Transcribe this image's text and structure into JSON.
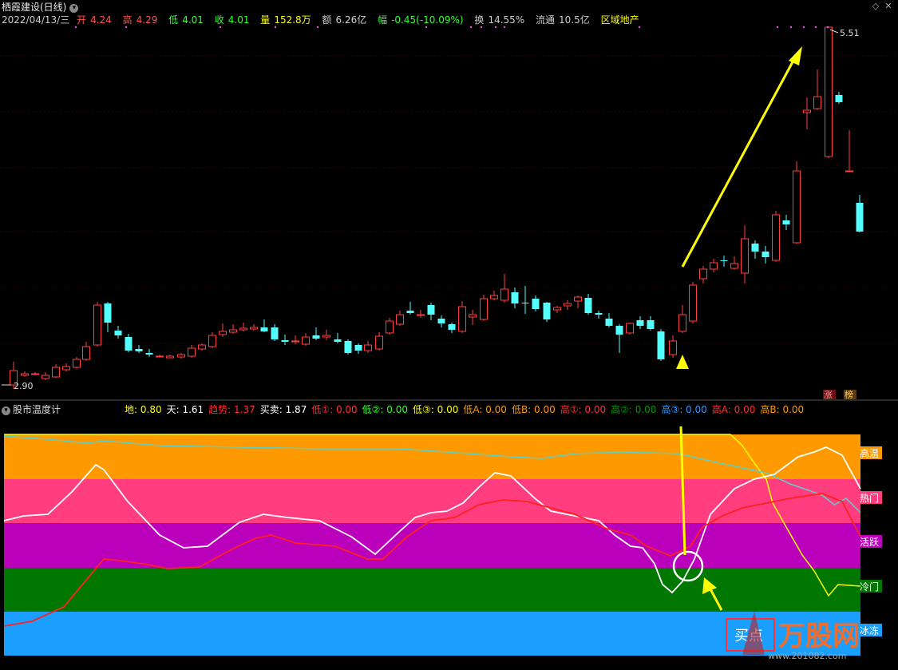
{
  "header": {
    "stock_name": "栖霞建设(日线)",
    "quote": {
      "date": "2022/04/13/三",
      "open_label": "开",
      "open": "4.24",
      "high_label": "高",
      "high": "4.29",
      "low_label": "低",
      "low": "4.01",
      "close_label": "收",
      "close": "4.01",
      "volume_label": "量",
      "volume": "152.8万",
      "amount_label": "额",
      "amount": "6.26亿",
      "change_label": "幅",
      "change": "-0.45(-10.09%)",
      "turnover_label": "换",
      "turnover": "14.55%",
      "float_label": "流通",
      "float": "10.5亿",
      "sector": "区域地产"
    }
  },
  "price_chart": {
    "high_marker": "5.51",
    "low_marker": "2.90",
    "badges": [
      "涨",
      "榜"
    ]
  },
  "indicator": {
    "name": "股市温度计",
    "values": [
      {
        "label": "地:",
        "value": "0.80",
        "color": "#ffff00"
      },
      {
        "label": "天:",
        "value": "1.61",
        "color": "#ffffff"
      },
      {
        "label": "趋势:",
        "value": "1.37",
        "color": "#ff3030"
      },
      {
        "label": "买卖:",
        "value": "1.87",
        "color": "#ffffff"
      },
      {
        "label": "低①:",
        "value": "0.00",
        "color": "#ff3030"
      },
      {
        "label": "低②:",
        "value": "0.00",
        "color": "#30ff30"
      },
      {
        "label": "低③:",
        "value": "0.00",
        "color": "#ffff00"
      },
      {
        "label": "低A:",
        "value": "0.00",
        "color": "#ff9900"
      },
      {
        "label": "低B:",
        "value": "0.00",
        "color": "#ff9900"
      },
      {
        "label": "高①:",
        "value": "0.00",
        "color": "#ff3030"
      },
      {
        "label": "高②:",
        "value": "0.00",
        "color": "#009900"
      },
      {
        "label": "高③:",
        "value": "0.00",
        "color": "#3399ff"
      },
      {
        "label": "高A:",
        "value": "0.00",
        "color": "#ff3030"
      },
      {
        "label": "高B:",
        "value": "0.00",
        "color": "#ff9900"
      }
    ],
    "zones": [
      {
        "label": "高温",
        "color": "#ff9900"
      },
      {
        "label": "热门",
        "color": "#ff3d7f"
      },
      {
        "label": "活跃",
        "color": "#bb00bb"
      },
      {
        "label": "冷门",
        "color": "#007700"
      },
      {
        "label": "冰冻",
        "color": "#1a9fff"
      }
    ],
    "buy_label": "买点"
  },
  "watermark": {
    "brand": "万股网",
    "url": "www.201082.com"
  },
  "colors": {
    "up": "#ff4040",
    "down": "#54ffff",
    "arrow": "#ffff00",
    "grid": "#2a2a2a"
  }
}
